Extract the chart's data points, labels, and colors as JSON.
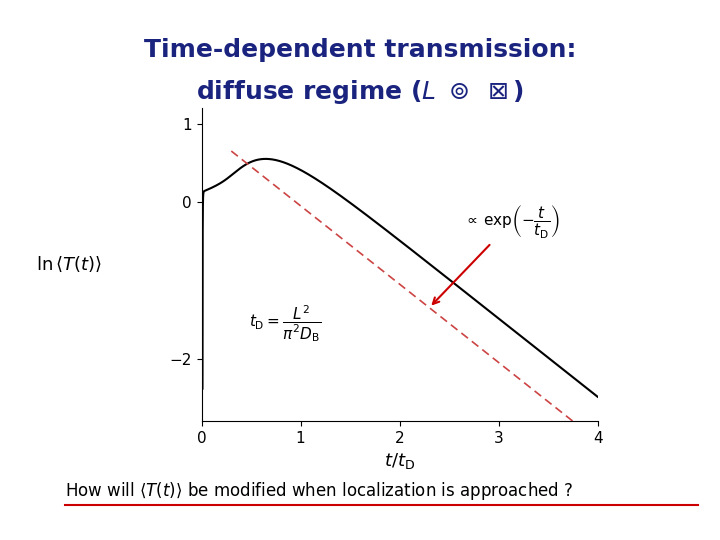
{
  "title_line1": "Time-dependent transmission:",
  "title_line2": "diffuse regime (",
  "title_color": "#1a237e",
  "bg_color": "#ffffff",
  "plot_xlim": [
    0,
    4
  ],
  "plot_ylim": [
    -2.8,
    1.2
  ],
  "xticks": [
    0,
    1,
    2,
    3,
    4
  ],
  "yticks": [
    -2,
    0,
    1
  ],
  "xlabel": "$t/t_{\\mathrm{D}}$",
  "ylabel": "$\\ln\\langle T(t)\\rangle$",
  "solid_color": "black",
  "dashed_color": "#cc4444",
  "arrow_color": "#cc0000",
  "bottom_text_color": "#000000",
  "underline_color": "#cc0000"
}
